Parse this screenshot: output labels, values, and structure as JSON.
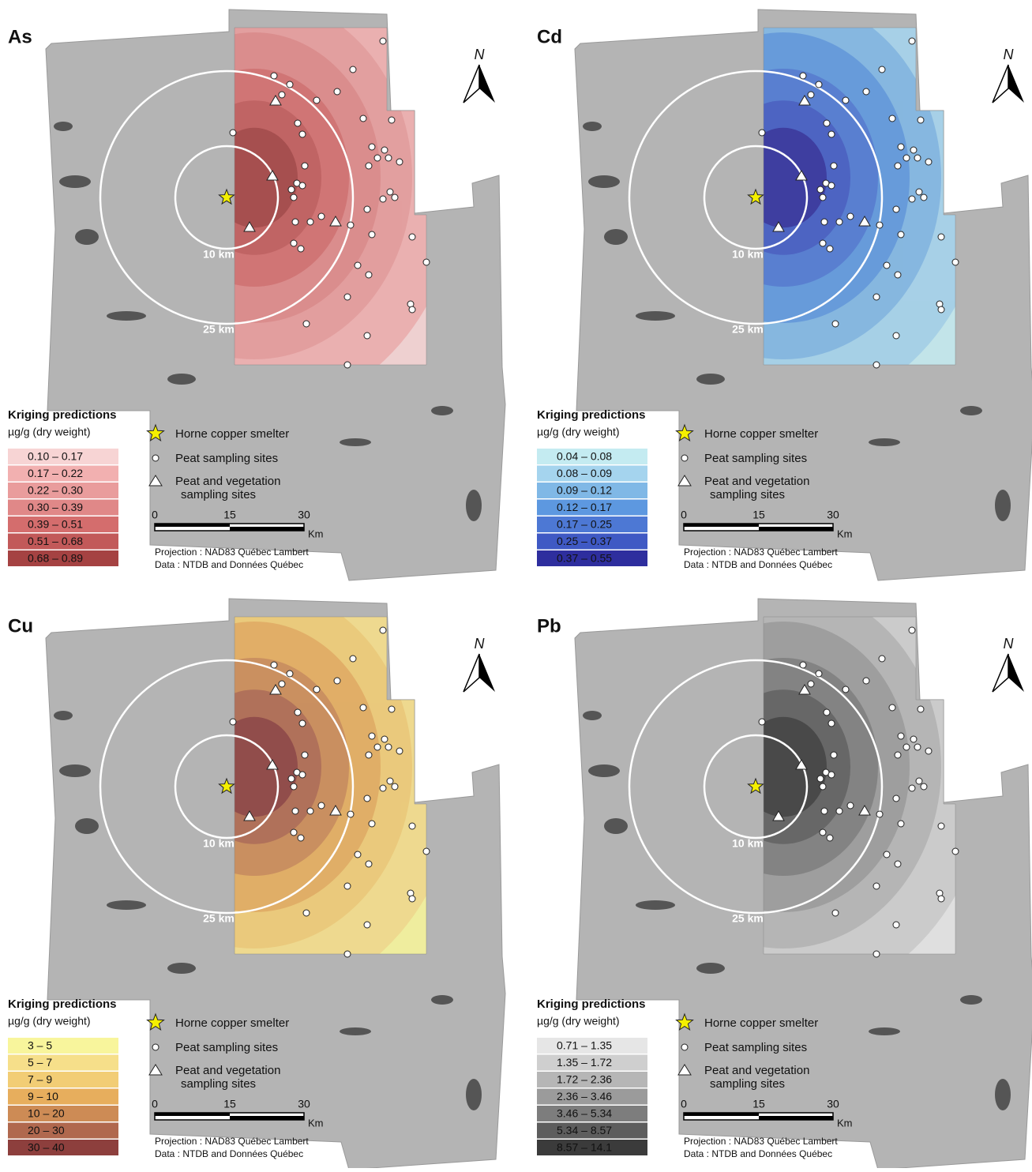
{
  "legend": {
    "title": "Kriging predictions",
    "unit": "µg/g (dry weight)",
    "smelter": "Horne copper smelter",
    "peat": "Peat sampling sites",
    "veg_line1": "Peat and vegetation",
    "veg_line2": "sampling sites",
    "scale": [
      "0",
      "15",
      "30"
    ],
    "scale_unit": "Km",
    "projection": "Projection : NAD83 Québec Lambert",
    "data_source": "Data : NTDB and Données Québec"
  },
  "rings": [
    "10 km",
    "25 km"
  ],
  "north": "N",
  "panels": [
    {
      "title": "As",
      "classes": [
        "0.10 – 0.17",
        "0.17 – 0.22",
        "0.22 – 0.30",
        "0.30 – 0.39",
        "0.39 – 0.51",
        "0.51 – 0.68",
        "0.68 – 0.89"
      ],
      "colors": [
        "#f7d4d4",
        "#f2b0b0",
        "#e99c9c",
        "#e08888",
        "#d46d6d",
        "#c25959",
        "#a54242"
      ]
    },
    {
      "title": "Cd",
      "classes": [
        "0.04 – 0.08",
        "0.08 – 0.09",
        "0.09 – 0.12",
        "0.12 – 0.17",
        "0.17 – 0.25",
        "0.25 – 0.37",
        "0.37 – 0.55"
      ],
      "colors": [
        "#c4ebf1",
        "#a5d4ee",
        "#80b8e6",
        "#5d98e0",
        "#4d78d4",
        "#3f59c4",
        "#2e2e9e"
      ]
    },
    {
      "title": "Cu",
      "classes": [
        "3 – 5",
        "5 – 7",
        "7 – 9",
        "9 – 10",
        "10 – 20",
        "20 – 30",
        "30 – 40"
      ],
      "colors": [
        "#f8f59c",
        "#f6df8a",
        "#f2cd75",
        "#e7ae5d",
        "#cd8b55",
        "#b0684e",
        "#8d3f3d"
      ]
    },
    {
      "title": "Pb",
      "classes": [
        "0.71 – 1.35",
        "1.35 – 1.72",
        "1.72 – 2.36",
        "2.36 – 3.46",
        "3.46 – 5.34",
        "5.34 – 8.57",
        "8.57 – 14.1"
      ],
      "colors": [
        "#e6e6e6",
        "#cfcfcf",
        "#b6b6b6",
        "#9b9b9b",
        "#7d7d7d",
        "#5d5d5d",
        "#3b3b3b"
      ]
    }
  ]
}
